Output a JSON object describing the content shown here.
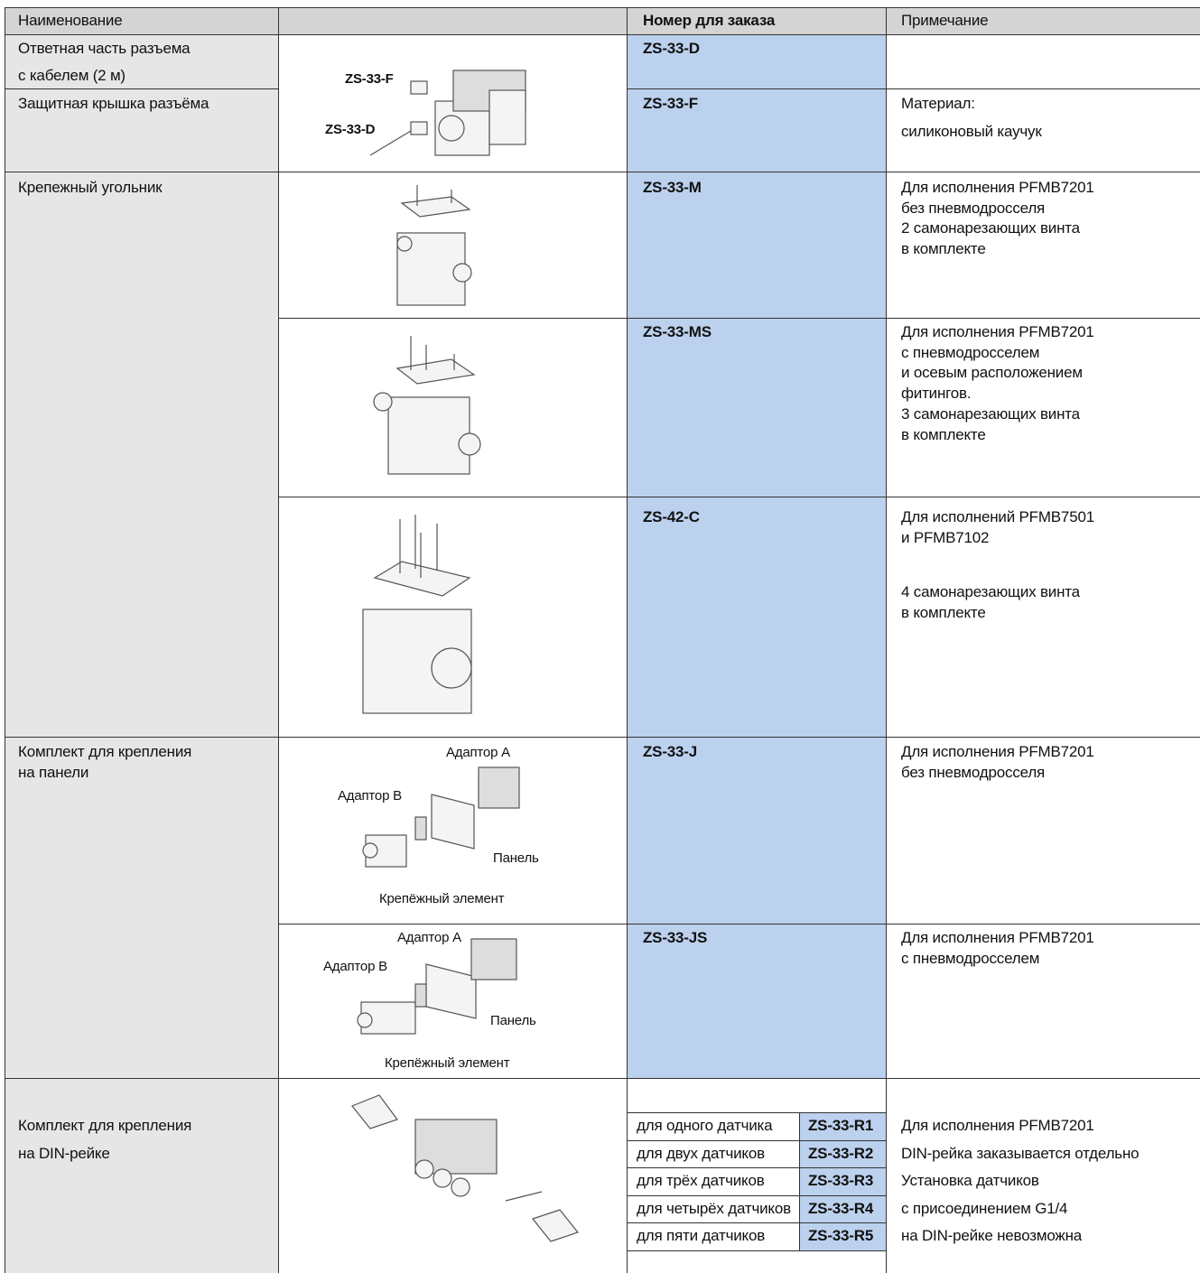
{
  "header": [
    "Наименование",
    "Номер для заказа",
    "Примечание"
  ],
  "connector": {
    "items": [
      {
        "name": [
          "Ответная часть разъема",
          "с кабелем (2 м)"
        ],
        "order": "ZS-33-D"
      },
      {
        "name": [
          "Защитная крышка разъёма"
        ],
        "order": "ZS-33-F",
        "note": [
          [
            "Материал:",
            "силиконовый каучук"
          ]
        ]
      }
    ],
    "figure_labels": [
      "ZS-33-F",
      "ZS-33-D"
    ]
  },
  "bracket": {
    "name": [
      "Крепежный угольник"
    ],
    "variants": [
      {
        "order": "ZS-33-M",
        "note": [
          [
            "Для исполнения PFMB7201",
            "без пневмодросселя",
            "2 самонарезающих винта",
            "в комплекте"
          ]
        ]
      },
      {
        "order": "ZS-33-MS",
        "note": [
          [
            "Для исполнения PFMB7201",
            "с пневмодросселем",
            "и осевым расположением",
            "фитингов.",
            "3 самонарезающих винта",
            "в комплекте"
          ]
        ]
      },
      {
        "order": "ZS-42-C",
        "note": [
          [
            "Для исполнений PFMB7501",
            "и PFMB7102"
          ],
          [
            "4 самонарезающих винта",
            "в комплекте"
          ]
        ]
      }
    ]
  },
  "panel": {
    "name": [
      "Комплект для крепления",
      "на панели"
    ],
    "variants": [
      {
        "order": "ZS-33-J",
        "figure_labels": [
          "Адаптор A",
          "Адаптор B",
          "Панель",
          "Крепёжный элемент"
        ],
        "note": [
          [
            "Для исполнения PFMB7201",
            "без пневмодросселя"
          ]
        ]
      },
      {
        "order": "ZS-33-JS",
        "figure_labels": [
          "Адаптор A",
          "Адаптор B",
          "Панель",
          "Крепёжный элемент"
        ],
        "note": [
          [
            "Для исполнения PFMB7201",
            "с пневмодросселем"
          ]
        ]
      }
    ]
  },
  "din": {
    "name": [
      "Комплект для крепления",
      "на DIN-рейке"
    ],
    "options": [
      {
        "label": "для одного датчика",
        "order": "ZS-33-R1"
      },
      {
        "label": "для двух датчиков",
        "order": "ZS-33-R2"
      },
      {
        "label": "для трёх датчиков",
        "order": "ZS-33-R3"
      },
      {
        "label": "для четырёх датчиков",
        "order": "ZS-33-R4"
      },
      {
        "label": "для пяти датчиков",
        "order": "ZS-33-R5"
      }
    ],
    "note": [
      "Для исполнения PFMB7201",
      "DIN-рейка заказывается отдельно",
      "Установка датчиков",
      "с присоединением G1/4",
      "на DIN-рейке невозможна"
    ]
  }
}
